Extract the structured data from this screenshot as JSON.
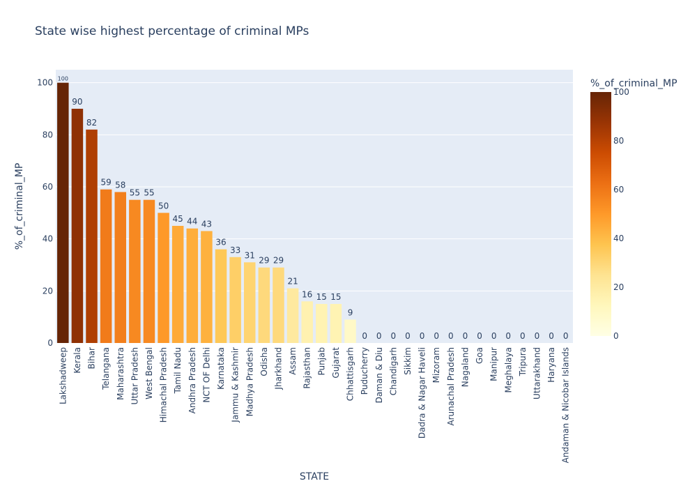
{
  "chart_data": {
    "type": "bar",
    "title": "State wise highest percentage of criminal MPs",
    "xlabel": "STATE",
    "ylabel": "%_of_criminal_MP",
    "ylim": [
      0,
      105
    ],
    "yticks": [
      0,
      20,
      40,
      60,
      80,
      100
    ],
    "grid": true,
    "categories": [
      "Lakshadweep",
      "Kerala",
      "Bihar",
      "Telangana",
      "Maharashtra",
      "Uttar Pradesh",
      "West Bengal",
      "Himachal Pradesh",
      "Tamil Nadu",
      "Andhra Pradesh",
      "NCT OF Delhi",
      "Karnataka",
      "Jammu & Kashmir",
      "Madhya Pradesh",
      "Odisha",
      "Jharkhand",
      "Assam",
      "Rajasthan",
      "Punjab",
      "Gujarat",
      "Chhattisgarh",
      "Puducherry",
      "Daman & Diu",
      "Chandigarh",
      "Sikkim",
      "Dadra & Nagar Haveli",
      "Mizoram",
      "Arunachal Pradesh",
      "Nagaland",
      "Goa",
      "Manipur",
      "Meghalaya",
      "Tripura",
      "Uttarakhand",
      "Haryana",
      "Andaman & Nicobar Islands"
    ],
    "values": [
      100,
      90,
      82,
      59,
      58,
      55,
      55,
      50,
      45,
      44,
      43,
      36,
      33,
      31,
      29,
      29,
      21,
      16,
      15,
      15,
      9,
      0,
      0,
      0,
      0,
      0,
      0,
      0,
      0,
      0,
      0,
      0,
      0,
      0,
      0,
      0
    ],
    "colorbar": {
      "title": "%_of_criminal_MP",
      "ticks": [
        0,
        20,
        40,
        60,
        80,
        100
      ],
      "range": [
        0,
        100
      ],
      "colors": [
        "#ffffe5",
        "#fff7bc",
        "#fee391",
        "#fec44f",
        "#fe9929",
        "#ec7014",
        "#cc4c02",
        "#993404",
        "#662506"
      ]
    },
    "plot_background": "#e5ecf6"
  }
}
